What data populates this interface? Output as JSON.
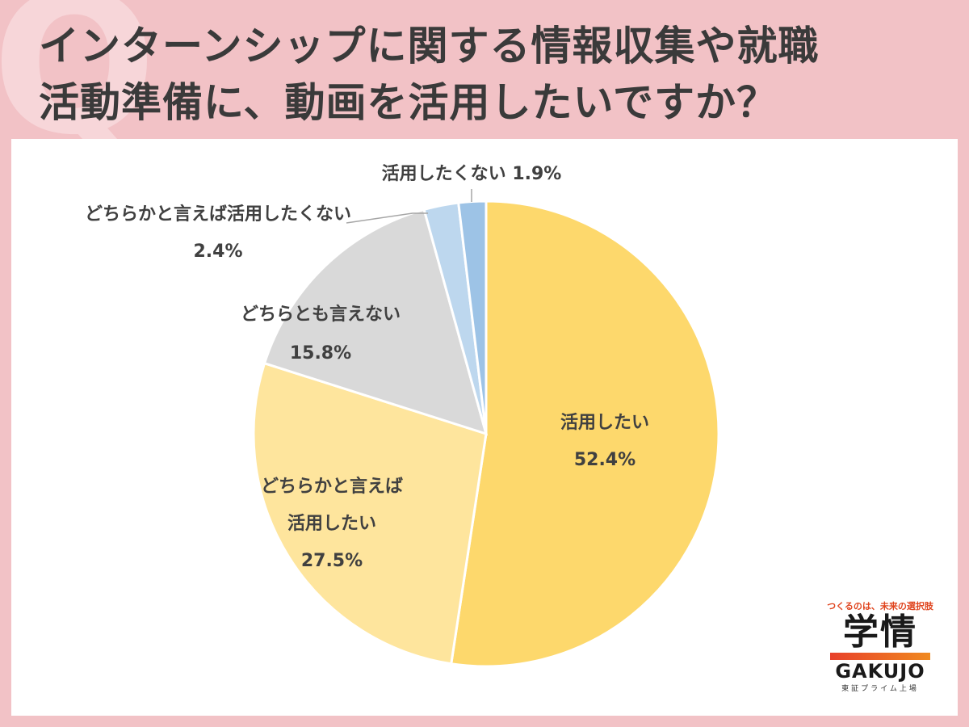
{
  "title": {
    "line1": "インターンシップに関する情報収集や就職",
    "line2": "活動準備に、動画を活用したいですか？",
    "q_mark": "Q"
  },
  "chart_data": {
    "type": "pie",
    "title": "インターンシップに関する情報収集や就職活動準備に、動画を活用したいですか？",
    "slices": [
      {
        "label": "活用したい",
        "value": 52.4,
        "pct": "52.4%",
        "color": "#fdd86c"
      },
      {
        "label": "どちらかと言えば活用したい",
        "label_lines": [
          "どちらかと言えば",
          "活用したい"
        ],
        "value": 27.5,
        "pct": "27.5%",
        "color": "#fee59d"
      },
      {
        "label": "どちらとも言えない",
        "value": 15.8,
        "pct": "15.8%",
        "color": "#d9d9d9"
      },
      {
        "label": "どちらかと言えば活用したくない",
        "value": 2.4,
        "pct": "2.4%",
        "color": "#bdd7ee"
      },
      {
        "label": "活用したくない",
        "value": 1.9,
        "pct": "1.9%",
        "color": "#9dc3e6"
      }
    ],
    "start": "12 o'clock",
    "direction": "clockwise"
  },
  "logo": {
    "tagline": "つくるのは、未来の選択肢",
    "mark": "学情",
    "english": "GAKUJO",
    "sub": "東証プライム上場"
  }
}
